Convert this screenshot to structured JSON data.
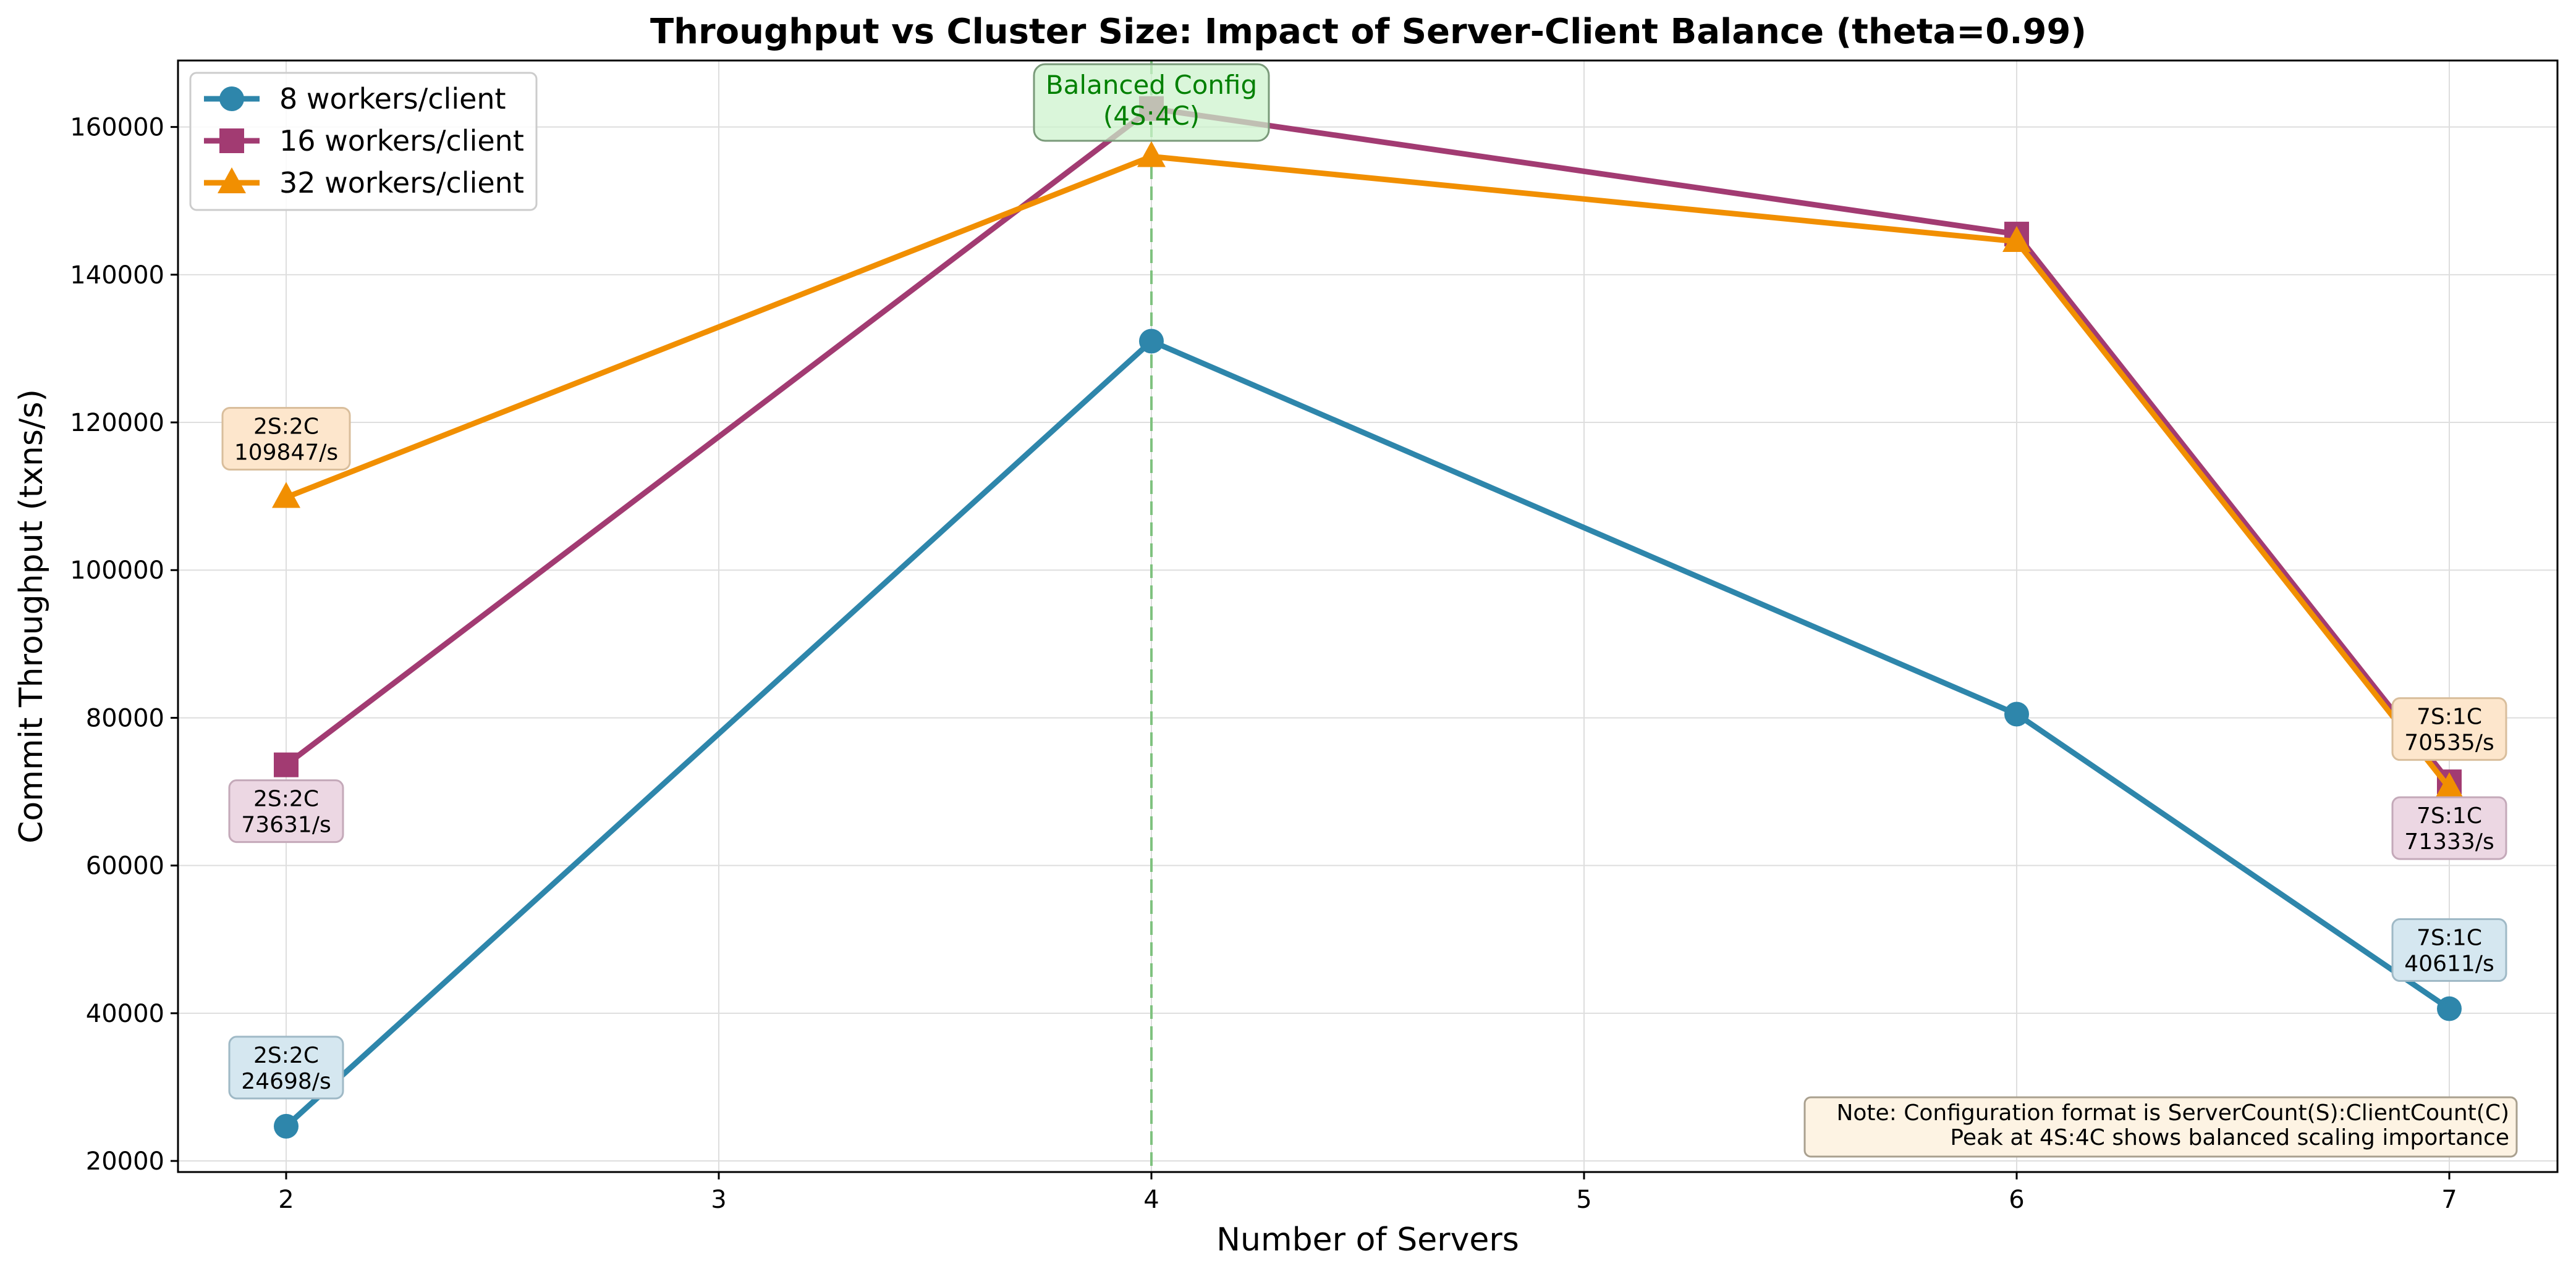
{
  "chart_data": {
    "type": "line",
    "title": "Throughput vs Cluster Size: Impact of Server-Client Balance (theta=0.99)",
    "xlabel": "Number of Servers",
    "ylabel": "Commit Throughput (txns/s)",
    "x": [
      2,
      4,
      6,
      7
    ],
    "x_ticks": [
      2,
      3,
      4,
      5,
      6,
      7
    ],
    "x_tick_labels": [
      "2",
      "3",
      "4",
      "5",
      "6",
      "7"
    ],
    "xlim": [
      1.75,
      7.25
    ],
    "ylim": [
      18500,
      169000
    ],
    "y_ticks": [
      20000,
      40000,
      60000,
      80000,
      100000,
      120000,
      140000,
      160000
    ],
    "y_tick_labels": [
      "20000",
      "40000",
      "60000",
      "80000",
      "100000",
      "120000",
      "140000",
      "160000"
    ],
    "grid": true,
    "legend_position": "top-left",
    "series": [
      {
        "name": "8 workers/client",
        "color": "#2E86AB",
        "marker": "circle",
        "values": [
          24698,
          131000,
          80500,
          40611
        ]
      },
      {
        "name": "16 workers/client",
        "color": "#A23B72",
        "marker": "square",
        "values": [
          73631,
          162500,
          145500,
          71333
        ]
      },
      {
        "name": "32 workers/client",
        "color": "#F18F01",
        "marker": "triangle",
        "values": [
          109847,
          156000,
          144500,
          70535
        ]
      }
    ],
    "annotations": [
      {
        "series": 0,
        "x": 2,
        "line1": "2S:2C",
        "line2": "24698/s",
        "fill": "#D5E7F0",
        "stroke": "#9FB9C6",
        "pos": "above"
      },
      {
        "series": 0,
        "x": 7,
        "line1": "7S:1C",
        "line2": "40611/s",
        "fill": "#D5E7F0",
        "stroke": "#9FB9C6",
        "pos": "above"
      },
      {
        "series": 1,
        "x": 2,
        "line1": "2S:2C",
        "line2": "73631/s",
        "fill": "#ECD7E3",
        "stroke": "#C4A9B9",
        "pos": "below"
      },
      {
        "series": 1,
        "x": 7,
        "line1": "7S:1C",
        "line2": "71333/s",
        "fill": "#ECD7E3",
        "stroke": "#C4A9B9",
        "pos": "below"
      },
      {
        "series": 2,
        "x": 2,
        "line1": "2S:2C",
        "line2": "109847/s",
        "fill": "#FDE6CC",
        "stroke": "#D9BE9C",
        "pos": "above"
      },
      {
        "series": 2,
        "x": 7,
        "line1": "7S:1C",
        "line2": "70535/s",
        "fill": "#FDE6CC",
        "stroke": "#D9BE9C",
        "pos": "above"
      }
    ],
    "reference_line": {
      "x": 4,
      "color": "#7FC27F"
    },
    "balanced_label": {
      "line1": "Balanced Config",
      "line2": "(4S:4C)",
      "fill": "#CCF2CC",
      "stroke": "#7A9A7A"
    },
    "note": {
      "line1": "Note: Configuration format is ServerCount(S):ClientCount(C)",
      "line2": "Peak at 4S:4C shows balanced scaling importance",
      "fill": "#FDF3E3",
      "stroke": "#A9A08F"
    }
  }
}
